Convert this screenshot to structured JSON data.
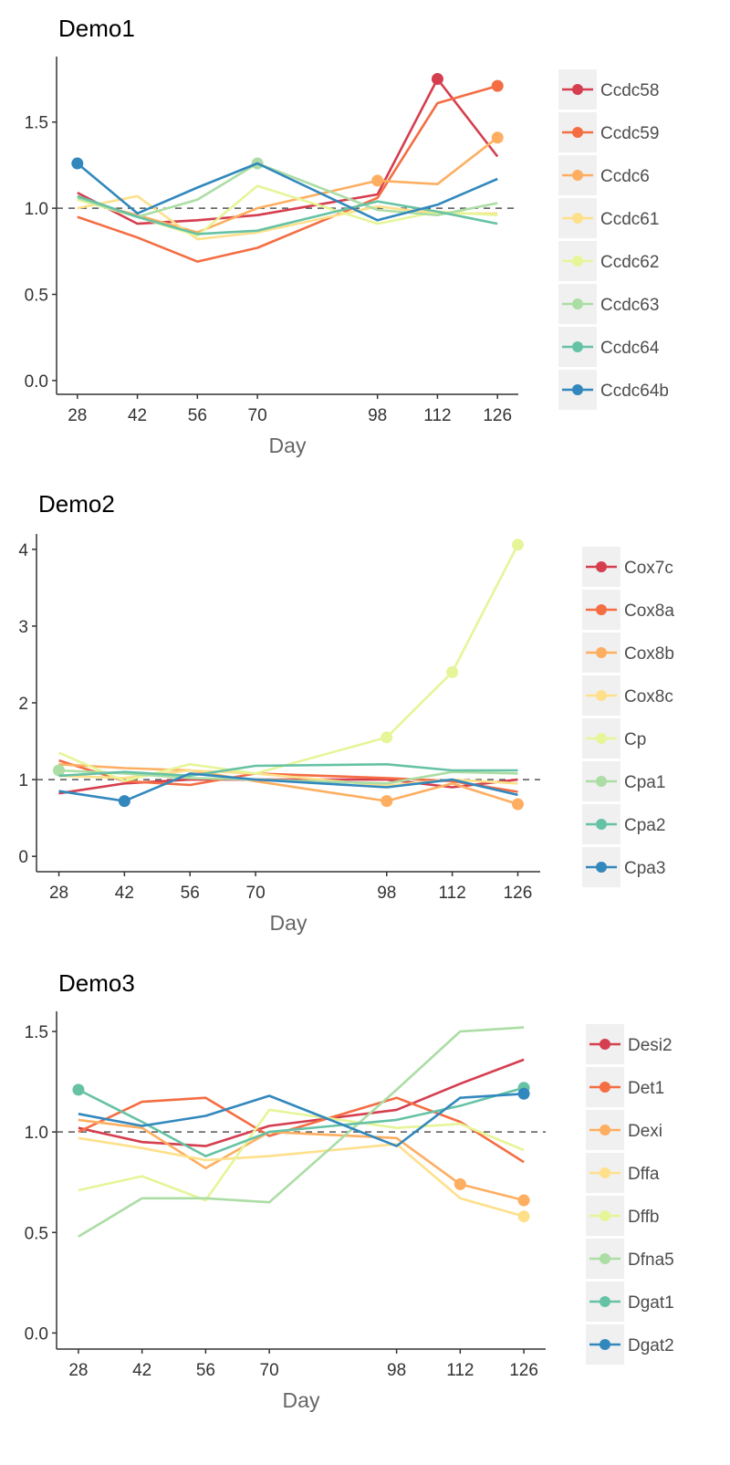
{
  "chart_data": [
    {
      "type": "line",
      "title": "Demo1",
      "xlabel": "Day",
      "ylabel": "",
      "x": [
        28,
        42,
        56,
        70,
        98,
        112,
        126
      ],
      "xticks": [
        "28",
        "42",
        "56",
        "70",
        "98",
        "112",
        "126"
      ],
      "ylim": [
        -0.08,
        1.88
      ],
      "yticks": [
        0.0,
        0.5,
        1.0,
        1.5
      ],
      "ytick_labels": [
        "0.0",
        "0.5",
        "1.0",
        "1.5"
      ],
      "reference_line": 1.0,
      "legend_position": "right",
      "series": [
        {
          "name": "Ccdc58",
          "color": "#D53E4F",
          "values": [
            1.09,
            0.91,
            0.93,
            0.96,
            1.08,
            1.75,
            1.3
          ],
          "markers": [
            112
          ]
        },
        {
          "name": "Ccdc59",
          "color": "#F46D43",
          "values": [
            0.95,
            0.83,
            0.69,
            0.77,
            1.06,
            1.61,
            1.71
          ],
          "markers": [
            126
          ]
        },
        {
          "name": "Ccdc6",
          "color": "#FDAE61",
          "values": [
            1.05,
            0.96,
            0.86,
            1.0,
            1.16,
            1.14,
            1.41
          ],
          "markers": [
            98,
            126
          ]
        },
        {
          "name": "Ccdc61",
          "color": "#FEE08B",
          "values": [
            1.0,
            1.07,
            0.82,
            0.86,
            1.01,
            0.97,
            0.97
          ],
          "markers": []
        },
        {
          "name": "Ccdc62",
          "color": "#E6F598",
          "values": [
            1.05,
            0.95,
            0.84,
            1.13,
            0.91,
            0.98,
            0.96
          ],
          "markers": []
        },
        {
          "name": "Ccdc63",
          "color": "#ABDDA4",
          "values": [
            1.06,
            0.95,
            1.05,
            1.26,
            0.99,
            0.96,
            1.03
          ],
          "markers": [
            70
          ]
        },
        {
          "name": "Ccdc64",
          "color": "#66C2A5",
          "values": [
            1.07,
            0.95,
            0.85,
            0.87,
            1.04,
            0.98,
            0.91
          ],
          "markers": []
        },
        {
          "name": "Ccdc64b",
          "color": "#3288BD",
          "values": [
            1.26,
            0.97,
            1.12,
            1.26,
            0.93,
            1.02,
            1.17
          ],
          "markers": [
            28
          ]
        }
      ]
    },
    {
      "type": "line",
      "title": "Demo2",
      "xlabel": "Day",
      "ylabel": "",
      "x": [
        28,
        42,
        56,
        70,
        98,
        112,
        126
      ],
      "xticks": [
        "28",
        "42",
        "56",
        "70",
        "98",
        "112",
        "126"
      ],
      "ylim": [
        -0.2,
        4.2
      ],
      "yticks": [
        0,
        1,
        2,
        3,
        4
      ],
      "ytick_labels": [
        "0",
        "1",
        "2",
        "3",
        "4"
      ],
      "reference_line": 1.0,
      "legend_position": "right",
      "series": [
        {
          "name": "Cox7c",
          "color": "#D53E4F",
          "values": [
            0.82,
            0.95,
            1.0,
            1.0,
            1.0,
            0.9,
            1.0
          ],
          "markers": []
        },
        {
          "name": "Cox8a",
          "color": "#F46D43",
          "values": [
            1.25,
            0.98,
            0.93,
            1.08,
            1.02,
            0.98,
            0.84
          ],
          "markers": []
        },
        {
          "name": "Cox8b",
          "color": "#FDAE61",
          "values": [
            1.2,
            1.15,
            1.12,
            0.98,
            0.72,
            0.95,
            0.68
          ],
          "markers": [
            98,
            126
          ]
        },
        {
          "name": "Cox8c",
          "color": "#FEE08B",
          "values": [
            1.05,
            1.02,
            1.12,
            1.08,
            0.92,
            1.0,
            0.95
          ],
          "markers": []
        },
        {
          "name": "Cp",
          "color": "#E6F598",
          "values": [
            1.35,
            0.98,
            1.2,
            1.08,
            1.55,
            2.4,
            4.06
          ],
          "markers": [
            98,
            112,
            126
          ]
        },
        {
          "name": "Cpa1",
          "color": "#ABDDA4",
          "values": [
            1.12,
            1.08,
            1.02,
            1.0,
            0.95,
            1.1,
            1.08
          ],
          "markers": [
            28
          ]
        },
        {
          "name": "Cpa2",
          "color": "#66C2A5",
          "values": [
            1.05,
            1.1,
            1.05,
            1.18,
            1.2,
            1.12,
            1.12
          ],
          "markers": []
        },
        {
          "name": "Cpa3",
          "color": "#3288BD",
          "values": [
            0.85,
            0.72,
            1.08,
            1.0,
            0.9,
            1.0,
            0.8
          ],
          "markers": [
            42
          ]
        }
      ]
    },
    {
      "type": "line",
      "title": "Demo3",
      "xlabel": "Day",
      "ylabel": "",
      "x": [
        28,
        42,
        56,
        70,
        98,
        112,
        126
      ],
      "xticks": [
        "28",
        "42",
        "56",
        "70",
        "98",
        "112",
        "126"
      ],
      "ylim": [
        -0.08,
        1.6
      ],
      "yticks": [
        0.0,
        0.5,
        1.0,
        1.5
      ],
      "ytick_labels": [
        "0.0",
        "0.5",
        "1.0",
        "1.5"
      ],
      "reference_line": 1.0,
      "legend_position": "right",
      "series": [
        {
          "name": "Desi2",
          "color": "#D53E4F",
          "values": [
            1.02,
            0.95,
            0.93,
            1.03,
            1.11,
            1.24,
            1.36
          ],
          "markers": []
        },
        {
          "name": "Det1",
          "color": "#F46D43",
          "values": [
            1.0,
            1.15,
            1.17,
            0.98,
            1.17,
            1.05,
            0.85
          ],
          "markers": []
        },
        {
          "name": "Dexi",
          "color": "#FDAE61",
          "values": [
            1.06,
            1.02,
            0.82,
            1.0,
            0.97,
            0.74,
            0.66
          ],
          "markers": [
            112,
            126
          ]
        },
        {
          "name": "Dffa",
          "color": "#FEE08B",
          "values": [
            0.97,
            0.92,
            0.86,
            0.88,
            0.94,
            0.67,
            0.58
          ],
          "markers": [
            126
          ]
        },
        {
          "name": "Dffb",
          "color": "#E6F598",
          "values": [
            0.71,
            0.78,
            0.66,
            1.11,
            1.02,
            1.04,
            0.91
          ],
          "markers": []
        },
        {
          "name": "Dfna5",
          "color": "#ABDDA4",
          "values": [
            0.48,
            0.67,
            0.67,
            0.65,
            1.21,
            1.5,
            1.52
          ],
          "markers": []
        },
        {
          "name": "Dgat1",
          "color": "#66C2A5",
          "values": [
            1.21,
            1.05,
            0.88,
            1.0,
            1.06,
            1.13,
            1.22
          ],
          "markers": [
            28,
            126
          ]
        },
        {
          "name": "Dgat2",
          "color": "#3288BD",
          "values": [
            1.09,
            1.03,
            1.08,
            1.18,
            0.93,
            1.17,
            1.19
          ],
          "markers": [
            126
          ]
        }
      ]
    }
  ]
}
